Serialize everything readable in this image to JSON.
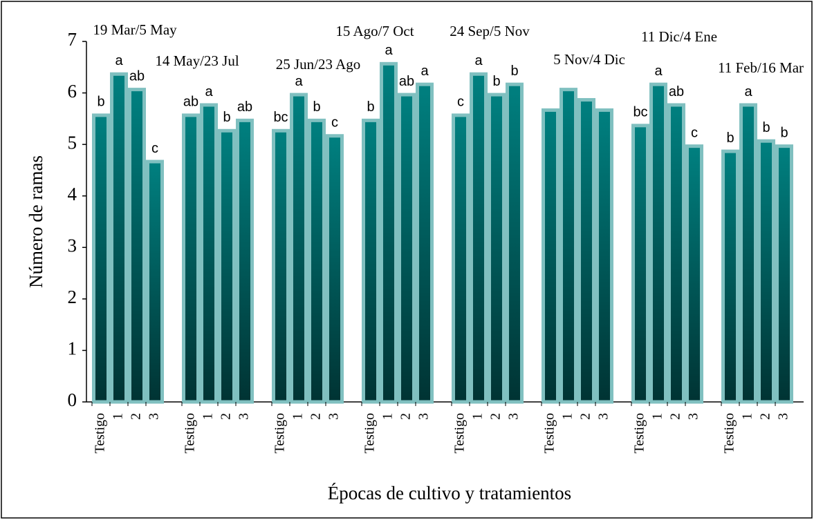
{
  "chart_data": {
    "type": "bar",
    "ylabel": "Número de ramas",
    "xlabel": "Épocas de cultivo y tratamientos",
    "ylim": [
      0,
      7
    ],
    "yticks": [
      0,
      1,
      2,
      3,
      4,
      5,
      6,
      7
    ],
    "color": "#008080",
    "border_color": "#80c0c0",
    "groups": [
      {
        "name": "19 Mar/5 May",
        "categories": [
          "Testigo",
          "1",
          "2",
          "3"
        ],
        "values": [
          5.6,
          6.4,
          6.1,
          4.7
        ],
        "letters": [
          "b",
          "a",
          "ab",
          "c"
        ]
      },
      {
        "name": "14 May/23 Jul",
        "categories": [
          "Testigo",
          "1",
          "2",
          "3"
        ],
        "values": [
          5.6,
          5.8,
          5.3,
          5.5
        ],
        "letters": [
          "ab",
          "a",
          "b",
          "ab"
        ]
      },
      {
        "name": "25 Jun/23 Ago",
        "categories": [
          "Testigo",
          "1",
          "2",
          "3"
        ],
        "values": [
          5.3,
          6.0,
          5.5,
          5.2
        ],
        "letters": [
          "bc",
          "a",
          "b",
          "c"
        ]
      },
      {
        "name": "15 Ago/7 Oct",
        "categories": [
          "Testigo",
          "1",
          "2",
          "3"
        ],
        "values": [
          5.5,
          6.6,
          6.0,
          6.2
        ],
        "letters": [
          "b",
          "a",
          "ab",
          "a"
        ]
      },
      {
        "name": "24 Sep/5 Nov",
        "categories": [
          "Testigo",
          "1",
          "2",
          "3"
        ],
        "values": [
          5.6,
          6.4,
          6.0,
          6.2
        ],
        "letters": [
          "c",
          "a",
          "b",
          "b"
        ]
      },
      {
        "name": "5 Nov/4 Dic",
        "categories": [
          "Testigo",
          "1",
          "2",
          "3"
        ],
        "values": [
          5.7,
          6.1,
          5.9,
          5.7
        ]
      },
      {
        "name": "11 Dic/4 Ene",
        "categories": [
          "Testigo",
          "1",
          "2",
          "3"
        ],
        "values": [
          5.4,
          6.2,
          5.8,
          5.0
        ],
        "letters": [
          "bc",
          "a",
          "ab",
          "c"
        ]
      },
      {
        "name": "11 Feb/16 Mar",
        "categories": [
          "Testigo",
          "1",
          "2",
          "3"
        ],
        "values": [
          4.9,
          5.8,
          5.1,
          5.0
        ],
        "letters": [
          "b",
          "a",
          "b",
          "b"
        ]
      }
    ]
  }
}
